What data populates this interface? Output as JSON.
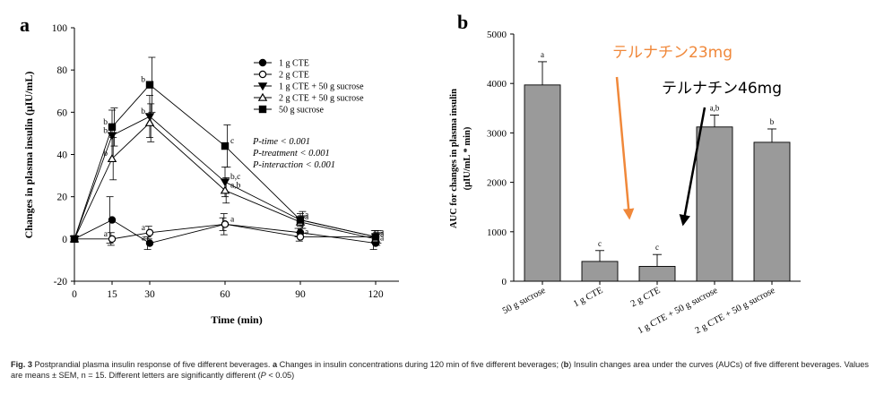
{
  "panel_a_letter": "a",
  "panel_b_letter": "b",
  "overlay": {
    "label_23": "テルナチン23mg",
    "label_46": "テルナチン46mg",
    "color_23": "#f0883a",
    "color_46": "#000000"
  },
  "stats": {
    "time": "P-time < 0.001",
    "treatment": "P-treatment < 0.001",
    "interaction": "P-interaction < 0.001"
  },
  "caption": {
    "label": "Fig. 3",
    "text1": " Postprandial plasma insulin response of five different beverages. ",
    "a": "a",
    "text2": " Changes in insulin concentrations during 120 min of five different beverages; (",
    "b": "b",
    "text3": ") Insulin changes area under the curves (AUCs) of five different beverages. Values are means ± SEM, n = 15. Different letters are significantly different (",
    "p": "P",
    "text4": " < 0.05)"
  },
  "chart_data": [
    {
      "type": "line",
      "panel": "a",
      "xlabel": "Time (min)",
      "ylabel": "Changes in plasma insulin (μIU/mL)",
      "x": [
        0,
        15,
        30,
        60,
        90,
        120
      ],
      "xticks": [
        0,
        15,
        30,
        60,
        90,
        120
      ],
      "ylim": [
        -20,
        100
      ],
      "yticks": [
        -20,
        0,
        20,
        40,
        60,
        80,
        100
      ],
      "series": [
        {
          "name": "1 g CTE",
          "marker": "filled-circle",
          "values": [
            0,
            9,
            -2,
            7,
            3,
            -2
          ],
          "err": [
            0,
            11,
            3,
            3,
            2,
            3
          ],
          "letters": [
            "",
            "",
            "a",
            "",
            "",
            "a"
          ]
        },
        {
          "name": "2 g CTE",
          "marker": "open-circle",
          "values": [
            0,
            0,
            3,
            7,
            1,
            1
          ],
          "err": [
            0,
            3,
            3,
            5,
            2,
            3
          ],
          "letters": [
            "",
            "a",
            "a",
            "a",
            "a",
            "a"
          ]
        },
        {
          "name": "1 g CTE + 50 g sucrose",
          "marker": "filled-triangle-down",
          "values": [
            0,
            49,
            58,
            27,
            9,
            1
          ],
          "err": [
            0,
            12,
            10,
            7,
            3,
            3
          ],
          "letters": [
            "",
            "b",
            "b",
            "b,c",
            "",
            ""
          ]
        },
        {
          "name": "2 g CTE + 50 g sucrose",
          "marker": "open-triangle-up",
          "values": [
            0,
            38,
            55,
            23,
            8,
            0
          ],
          "err": [
            0,
            10,
            9,
            6,
            3,
            3
          ],
          "letters": [
            "",
            "b",
            "",
            "a,b",
            "a",
            "a"
          ]
        },
        {
          "name": "50 g sucrose",
          "marker": "filled-square",
          "values": [
            0,
            53,
            73,
            44,
            9,
            1
          ],
          "err": [
            0,
            9,
            13,
            10,
            4,
            3
          ],
          "letters": [
            "",
            "b",
            "b",
            "c",
            "a",
            "a"
          ]
        }
      ]
    },
    {
      "type": "bar",
      "panel": "b",
      "ylabel_line1": "AUC for changes in plasma insulin",
      "ylabel_line2": "(μIU/mL * min)",
      "categories": [
        "50 g sucrose",
        "1 g CTE",
        "2 g CTE",
        "1 g CTE + 50 g sucrose",
        "2 g CTE + 50 g sucrose"
      ],
      "values": [
        3970,
        400,
        300,
        3120,
        2810
      ],
      "err": [
        470,
        220,
        240,
        240,
        270
      ],
      "letters": [
        "a",
        "c",
        "c",
        "a,b",
        "b"
      ],
      "ylim": [
        0,
        5000
      ],
      "yticks": [
        0,
        1000,
        2000,
        3000,
        4000,
        5000
      ]
    }
  ]
}
